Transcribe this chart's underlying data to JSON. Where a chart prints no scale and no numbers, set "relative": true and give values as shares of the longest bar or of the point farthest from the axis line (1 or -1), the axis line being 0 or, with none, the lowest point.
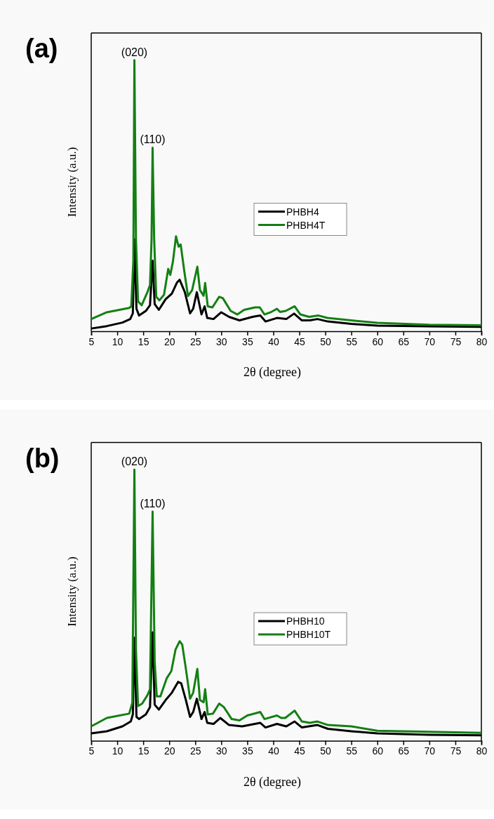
{
  "chart_data": [
    {
      "type": "line",
      "title": "(a)",
      "xlabel": "2θ (degree)",
      "ylabel": "Intensity (a.u.)",
      "relative": true,
      "xlim": [
        5,
        80
      ],
      "xticks": [
        5,
        10,
        15,
        20,
        25,
        30,
        35,
        40,
        45,
        50,
        55,
        60,
        65,
        70,
        75,
        80
      ],
      "tick_labels": "x",
      "legend": "right",
      "grid": false,
      "annotations": [
        "(020)",
        "(110)"
      ],
      "series": [
        {
          "name": "PHBH4",
          "color": "#000000",
          "x": [
            5,
            8,
            11,
            12.5,
            13.0,
            13.3,
            13.7,
            14.2,
            15.5,
            16.3,
            16.8,
            17.2,
            18.0,
            19.3,
            20.5,
            21.5,
            22.0,
            23.0,
            24.0,
            24.6,
            25.3,
            26.2,
            26.8,
            27.3,
            28.5,
            30.0,
            31.5,
            33.5,
            36.0,
            37.5,
            38.5,
            40.7,
            42.5,
            44.0,
            45.5,
            47.0,
            48.5,
            50.5,
            55,
            60,
            70,
            80
          ],
          "values": [
            0.01,
            0.019,
            0.032,
            0.045,
            0.066,
            0.34,
            0.083,
            0.058,
            0.075,
            0.096,
            0.26,
            0.1,
            0.079,
            0.118,
            0.139,
            0.18,
            0.19,
            0.144,
            0.066,
            0.083,
            0.144,
            0.062,
            0.092,
            0.049,
            0.045,
            0.07,
            0.053,
            0.04,
            0.053,
            0.058,
            0.036,
            0.049,
            0.045,
            0.065,
            0.04,
            0.04,
            0.045,
            0.036,
            0.027,
            0.021,
            0.018,
            0.016
          ]
        },
        {
          "name": "PHBH4T",
          "color": "#138013",
          "x": [
            5,
            8,
            12.3,
            12.7,
            13.1,
            13.3,
            13.6,
            14.0,
            14.7,
            15.8,
            16.3,
            16.6,
            16.8,
            17.1,
            17.5,
            18.1,
            19.0,
            19.8,
            20.2,
            20.7,
            21.3,
            21.8,
            22.2,
            22.9,
            23.6,
            24.4,
            25.4,
            25.9,
            26.6,
            26.9,
            27.4,
            28.3,
            29.6,
            30.3,
            31.8,
            33.1,
            34.4,
            36.5,
            37.4,
            38.3,
            39.6,
            40.7,
            41.3,
            42.4,
            44.1,
            45.2,
            46.9,
            48.7,
            50.4,
            55,
            60,
            70,
            80
          ],
          "values": [
            0.045,
            0.07,
            0.086,
            0.092,
            0.26,
            1.0,
            0.34,
            0.11,
            0.096,
            0.144,
            0.17,
            0.34,
            0.677,
            0.34,
            0.127,
            0.114,
            0.135,
            0.23,
            0.208,
            0.256,
            0.35,
            0.312,
            0.32,
            0.22,
            0.13,
            0.152,
            0.238,
            0.152,
            0.131,
            0.178,
            0.092,
            0.088,
            0.127,
            0.122,
            0.075,
            0.062,
            0.079,
            0.088,
            0.088,
            0.062,
            0.071,
            0.083,
            0.071,
            0.075,
            0.092,
            0.062,
            0.053,
            0.058,
            0.049,
            0.04,
            0.031,
            0.024,
            0.022
          ]
        }
      ]
    },
    {
      "type": "line",
      "title": "(b)",
      "xlabel": "2θ (degree)",
      "ylabel": "Intensity (a.u.)",
      "relative": true,
      "xlim": [
        5,
        80
      ],
      "xticks": [
        5,
        10,
        15,
        20,
        25,
        30,
        35,
        40,
        45,
        50,
        55,
        60,
        65,
        70,
        75,
        80
      ],
      "tick_labels": "x",
      "legend": "right",
      "grid": false,
      "annotations": [
        "(020)",
        "(110)"
      ],
      "series": [
        {
          "name": "PHBH10",
          "color": "#000000",
          "x": [
            5,
            8,
            11,
            12.6,
            13.0,
            13.3,
            13.7,
            14.2,
            15.5,
            16.3,
            16.8,
            17.2,
            18.0,
            19.3,
            20.5,
            21.7,
            22.3,
            23.2,
            24.0,
            24.6,
            25.3,
            26.2,
            26.8,
            27.3,
            28.5,
            29.8,
            31.5,
            34,
            37.5,
            38.5,
            40.7,
            42.5,
            44.1,
            45.5,
            48.5,
            50.5,
            55,
            60,
            70,
            80
          ],
          "values": [
            0.027,
            0.035,
            0.053,
            0.071,
            0.097,
            0.38,
            0.088,
            0.08,
            0.097,
            0.124,
            0.4,
            0.133,
            0.115,
            0.15,
            0.177,
            0.217,
            0.212,
            0.15,
            0.088,
            0.106,
            0.155,
            0.08,
            0.106,
            0.066,
            0.062,
            0.084,
            0.058,
            0.053,
            0.066,
            0.049,
            0.062,
            0.053,
            0.071,
            0.049,
            0.058,
            0.044,
            0.035,
            0.027,
            0.022,
            0.02
          ]
        },
        {
          "name": "PHBH10T",
          "color": "#138013",
          "x": [
            5,
            8,
            12.3,
            12.9,
            13.3,
            13.6,
            14.0,
            14.8,
            15.8,
            16.3,
            16.8,
            17.2,
            17.6,
            18.3,
            19.5,
            20.4,
            21.2,
            22.0,
            22.5,
            23.2,
            24.0,
            24.6,
            25.4,
            25.9,
            26.6,
            26.9,
            27.4,
            28.4,
            29.6,
            30.5,
            32,
            33.5,
            35,
            37.5,
            38.3,
            40.7,
            41.5,
            42.3,
            44.1,
            45.5,
            47,
            48.5,
            50.5,
            55,
            60,
            70,
            80
          ],
          "values": [
            0.053,
            0.084,
            0.1,
            0.14,
            1.0,
            0.336,
            0.128,
            0.137,
            0.168,
            0.19,
            0.845,
            0.29,
            0.164,
            0.164,
            0.23,
            0.257,
            0.336,
            0.367,
            0.354,
            0.265,
            0.155,
            0.177,
            0.265,
            0.15,
            0.142,
            0.19,
            0.097,
            0.1,
            0.137,
            0.124,
            0.08,
            0.075,
            0.093,
            0.106,
            0.08,
            0.093,
            0.084,
            0.084,
            0.111,
            0.071,
            0.066,
            0.071,
            0.058,
            0.053,
            0.037,
            0.033,
            0.029
          ]
        }
      ]
    }
  ]
}
